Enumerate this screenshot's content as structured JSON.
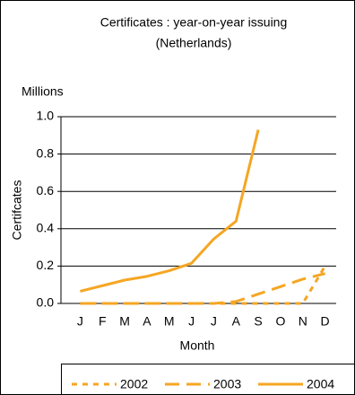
{
  "chart_data": {
    "type": "line",
    "title": "Certificates : year-on-year issuing",
    "subtitle": "(Netherlands)",
    "unit_label": "Millions",
    "ylabel": "Certifcates",
    "xlabel": "Month",
    "categories": [
      "J",
      "F",
      "M",
      "A",
      "M",
      "J",
      "J",
      "A",
      "S",
      "O",
      "N",
      "D"
    ],
    "series": [
      {
        "name": "2002",
        "color": "#f5a623",
        "dash": "6,6",
        "values": [
          0,
          0,
          0,
          0,
          0,
          0,
          0,
          0,
          0,
          0,
          0,
          0.2
        ]
      },
      {
        "name": "2003",
        "color": "#f5a623",
        "dash": "16,8",
        "values": [
          0,
          0,
          0,
          0,
          0,
          0,
          0,
          0.01,
          0.05,
          0.09,
          0.13,
          0.16
        ]
      },
      {
        "name": "2004",
        "color": "#f5a623",
        "dash": "none",
        "values": [
          0.065,
          0.095,
          0.125,
          0.145,
          0.175,
          0.215,
          0.345,
          0.44,
          0.93,
          null,
          null,
          null
        ]
      }
    ],
    "ylim": [
      0,
      1
    ],
    "yticks": [
      {
        "value": 0,
        "label": "0.0"
      },
      0.2,
      0.4,
      0.6,
      0.8,
      {
        "value": 1,
        "label": "1.0"
      }
    ],
    "grid": true,
    "legend": "bottom"
  }
}
